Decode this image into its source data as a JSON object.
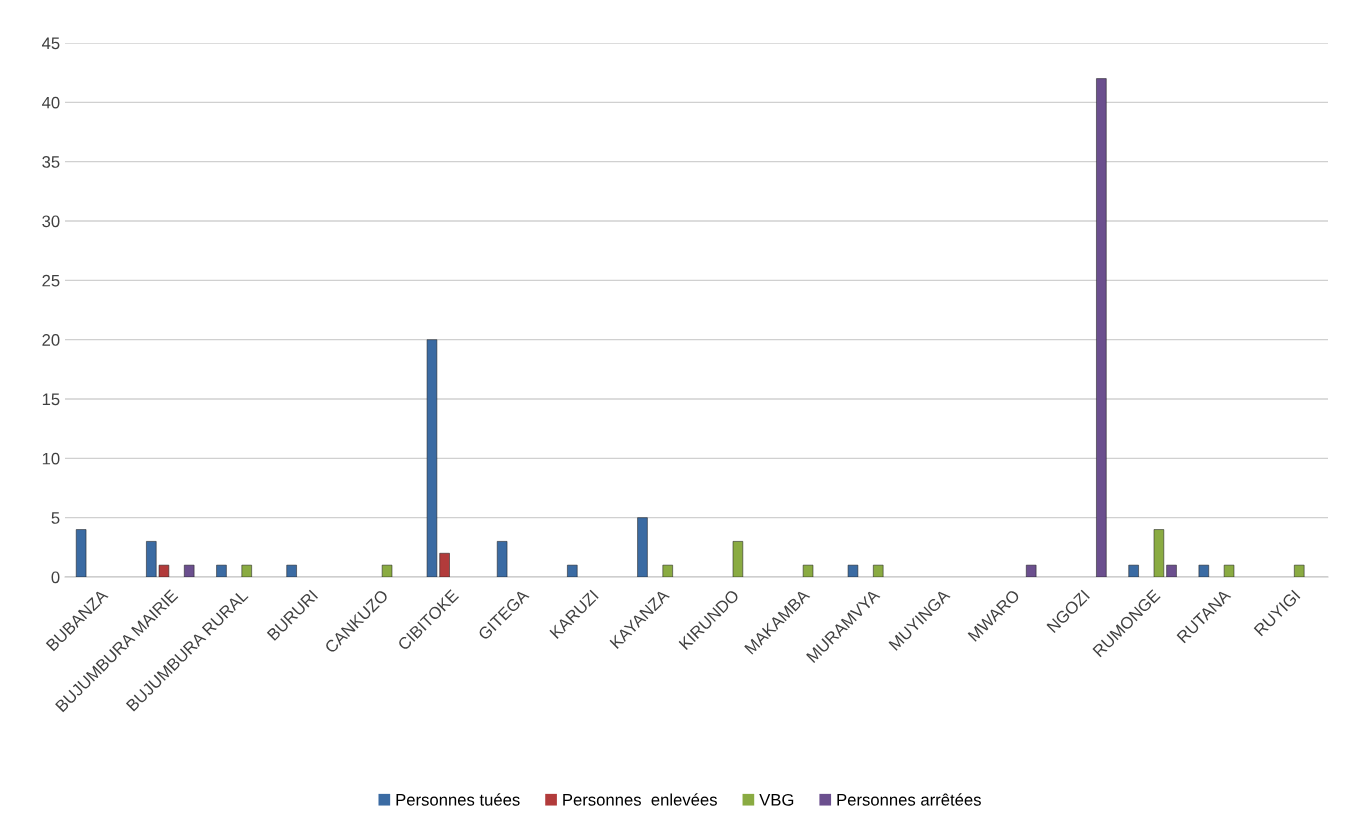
{
  "chart_data": {
    "type": "bar",
    "categories": [
      "BUBANZA",
      "BUJUMBURA MAIRIE",
      "BUJUMBURA RURAL",
      "BURURI",
      "CANKUZO",
      "CIBITOKE",
      "GITEGA",
      "KARUZI",
      "KAYANZA",
      "KIRUNDO",
      "MAKAMBA",
      "MURAMVYA",
      "MUYINGA",
      "MWARO",
      "NGOZI",
      "RUMONGE",
      "RUTANA",
      "RUYIGI"
    ],
    "series": [
      {
        "name": "Personnes tuées",
        "color": "#3b6ba3",
        "values": [
          4,
          3,
          1,
          1,
          null,
          20,
          3,
          1,
          5,
          null,
          null,
          1,
          null,
          null,
          null,
          1,
          1,
          null
        ]
      },
      {
        "name": "Personnes  enlevées",
        "color": "#b23b3b",
        "values": [
          null,
          1,
          null,
          null,
          null,
          2,
          null,
          null,
          null,
          null,
          null,
          null,
          null,
          null,
          null,
          null,
          null,
          null
        ]
      },
      {
        "name": "VBG",
        "color": "#8aab42",
        "values": [
          null,
          null,
          1,
          null,
          1,
          null,
          null,
          null,
          1,
          3,
          1,
          1,
          null,
          null,
          null,
          4,
          1,
          1
        ]
      },
      {
        "name": "Personnes arrêtées",
        "color": "#6b4f8e",
        "values": [
          null,
          1,
          null,
          null,
          null,
          null,
          null,
          null,
          null,
          null,
          null,
          null,
          null,
          1,
          42,
          1,
          null,
          null
        ]
      }
    ],
    "ylim": [
      0,
      45
    ],
    "yticks": [
      0,
      5,
      10,
      15,
      20,
      25,
      30,
      35,
      40,
      45
    ],
    "grid": "y",
    "legend": "bottom"
  }
}
